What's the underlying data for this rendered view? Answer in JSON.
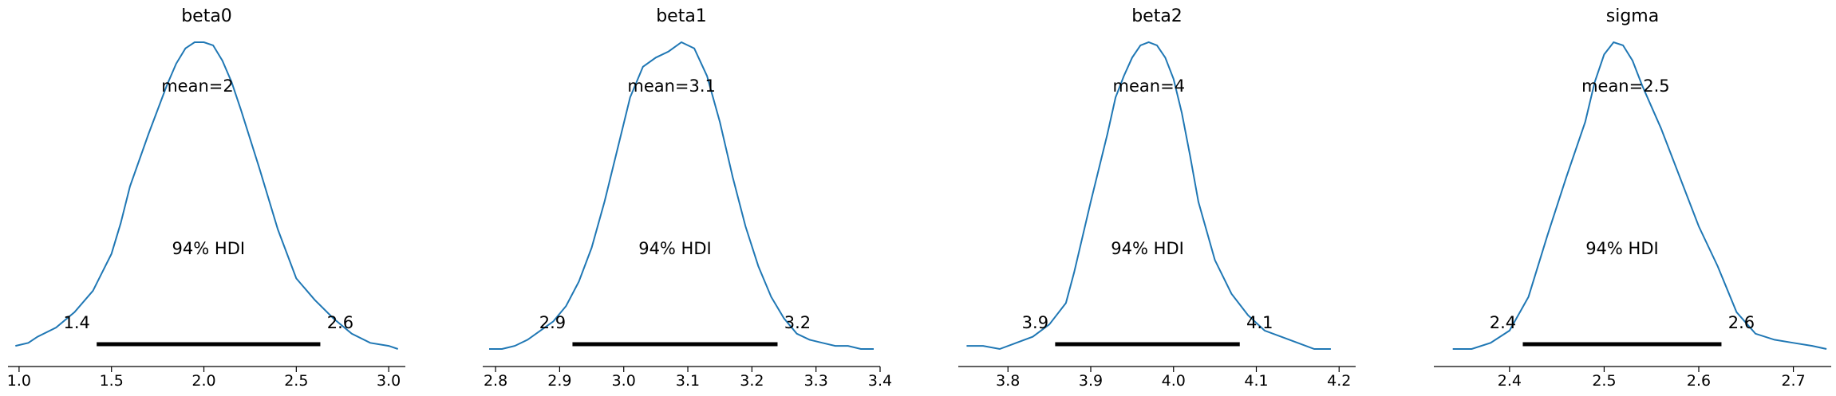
{
  "chart_data": [
    {
      "type": "line",
      "title": "beta0",
      "mean_label": "mean=2",
      "hdi_label": "94% HDI",
      "hdi_low_label": "1.4",
      "hdi_high_label": "2.6",
      "hdi": [
        1.42,
        2.63
      ],
      "xlim": [
        0.94,
        3.09
      ],
      "xticks": [
        1.0,
        1.5,
        2.0,
        2.5,
        3.0
      ],
      "xtick_labels": [
        "1.0",
        "1.5",
        "2.0",
        "2.5",
        "3.0"
      ],
      "density": {
        "x": [
          0.98,
          1.05,
          1.1,
          1.2,
          1.3,
          1.4,
          1.5,
          1.55,
          1.6,
          1.7,
          1.8,
          1.85,
          1.9,
          1.95,
          2.0,
          2.05,
          2.1,
          2.15,
          2.2,
          2.3,
          2.4,
          2.5,
          2.6,
          2.7,
          2.8,
          2.9,
          3.0,
          3.05
        ],
        "y": [
          0.01,
          0.02,
          0.04,
          0.07,
          0.12,
          0.19,
          0.31,
          0.41,
          0.53,
          0.7,
          0.86,
          0.93,
          0.98,
          1.0,
          1.0,
          0.99,
          0.94,
          0.87,
          0.78,
          0.59,
          0.39,
          0.23,
          0.16,
          0.1,
          0.05,
          0.02,
          0.01,
          0.0
        ]
      }
    },
    {
      "type": "line",
      "title": "beta1",
      "mean_label": "mean=3.1",
      "hdi_label": "94% HDI",
      "hdi_low_label": "2.9",
      "hdi_high_label": "3.2",
      "hdi": [
        2.92,
        3.24
      ],
      "xlim": [
        2.78,
        3.4
      ],
      "xticks": [
        2.8,
        2.9,
        3.0,
        3.1,
        3.2,
        3.3,
        3.4
      ],
      "xtick_labels": [
        "2.8",
        "2.9",
        "3.0",
        "3.1",
        "3.2",
        "3.3",
        "3.4"
      ],
      "density": {
        "x": [
          2.79,
          2.81,
          2.83,
          2.85,
          2.87,
          2.89,
          2.91,
          2.93,
          2.95,
          2.97,
          2.99,
          3.01,
          3.03,
          3.05,
          3.07,
          3.09,
          3.11,
          3.13,
          3.15,
          3.17,
          3.19,
          3.21,
          3.23,
          3.25,
          3.27,
          3.29,
          3.31,
          3.33,
          3.35,
          3.37,
          3.39
        ],
        "y": [
          0.0,
          0.0,
          0.01,
          0.03,
          0.06,
          0.09,
          0.14,
          0.22,
          0.33,
          0.48,
          0.65,
          0.82,
          0.92,
          0.95,
          0.97,
          1.0,
          0.98,
          0.89,
          0.74,
          0.56,
          0.4,
          0.27,
          0.17,
          0.1,
          0.05,
          0.03,
          0.02,
          0.01,
          0.01,
          0.0,
          0.0
        ]
      }
    },
    {
      "type": "line",
      "title": "beta2",
      "mean_label": "mean=4",
      "hdi_label": "94% HDI",
      "hdi_low_label": "3.9",
      "hdi_high_label": "4.1",
      "hdi": [
        3.857,
        4.08
      ],
      "xlim": [
        3.74,
        4.22
      ],
      "xticks": [
        3.8,
        3.9,
        4.0,
        4.1,
        4.2
      ],
      "xtick_labels": [
        "3.8",
        "3.9",
        "4.0",
        "4.1",
        "4.2"
      ],
      "density": {
        "x": [
          3.75,
          3.77,
          3.79,
          3.81,
          3.83,
          3.85,
          3.87,
          3.88,
          3.9,
          3.92,
          3.93,
          3.94,
          3.95,
          3.96,
          3.97,
          3.98,
          3.99,
          4.0,
          4.01,
          4.02,
          4.03,
          4.05,
          4.07,
          4.09,
          4.11,
          4.13,
          4.15,
          4.17,
          4.19
        ],
        "y": [
          0.01,
          0.01,
          0.0,
          0.02,
          0.04,
          0.08,
          0.15,
          0.25,
          0.48,
          0.7,
          0.82,
          0.89,
          0.95,
          0.99,
          1.0,
          0.99,
          0.95,
          0.88,
          0.77,
          0.63,
          0.48,
          0.29,
          0.18,
          0.11,
          0.06,
          0.04,
          0.02,
          0.0,
          0.0
        ]
      }
    },
    {
      "type": "line",
      "title": "sigma",
      "mean_label": "mean=2.5",
      "hdi_label": "94% HDI",
      "hdi_low_label": "2.4",
      "hdi_high_label": "2.6",
      "hdi": [
        2.414,
        2.624
      ],
      "xlim": [
        2.32,
        2.74
      ],
      "xticks": [
        2.4,
        2.5,
        2.6,
        2.7
      ],
      "xtick_labels": [
        "2.4",
        "2.5",
        "2.6",
        "2.7"
      ],
      "density": {
        "x": [
          2.34,
          2.36,
          2.38,
          2.4,
          2.42,
          2.44,
          2.46,
          2.48,
          2.49,
          2.5,
          2.51,
          2.52,
          2.53,
          2.54,
          2.55,
          2.56,
          2.58,
          2.6,
          2.62,
          2.64,
          2.66,
          2.68,
          2.7,
          2.72,
          2.735
        ],
        "y": [
          0.0,
          0.0,
          0.02,
          0.06,
          0.17,
          0.37,
          0.56,
          0.74,
          0.87,
          0.96,
          1.0,
          0.99,
          0.94,
          0.86,
          0.79,
          0.72,
          0.56,
          0.4,
          0.27,
          0.12,
          0.05,
          0.03,
          0.02,
          0.01,
          0.0
        ]
      }
    }
  ]
}
